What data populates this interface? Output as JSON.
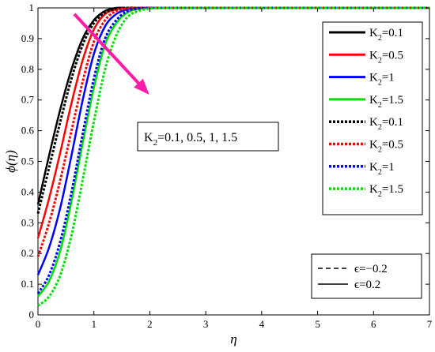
{
  "chart_data": {
    "type": "line",
    "xlabel": "η",
    "ylabel": "ϕ(η)",
    "xlim": [
      0,
      7
    ],
    "ylim": [
      0,
      1
    ],
    "xticks": [
      "0",
      "1",
      "2",
      "3",
      "4",
      "5",
      "6",
      "7"
    ],
    "yticks": [
      "0",
      "0.1",
      "0.2",
      "0.3",
      "0.4",
      "0.5",
      "0.6",
      "0.7",
      "0.8",
      "0.9",
      "1"
    ],
    "grid": false,
    "legend_position": "top-right",
    "x": [
      0,
      0.2,
      0.4,
      0.6,
      0.8,
      1.0,
      1.2,
      1.4,
      1.6,
      1.8,
      2.0,
      2.2,
      2.4,
      2.6,
      2.8,
      3.0,
      3.5,
      4,
      5,
      6,
      7
    ],
    "series": [
      {
        "legend": "K",
        "sub": "2",
        "val": "=0.1",
        "color": "#000000",
        "dash": "solid",
        "values": [
          0.36,
          0.52,
          0.67,
          0.8,
          0.9,
          0.96,
          0.99,
          1.0,
          1.0,
          1.0,
          1.0,
          1.0,
          1.0,
          1.0,
          1.0,
          1.0,
          1.0,
          1.0,
          1.0,
          1.0,
          1.0
        ]
      },
      {
        "legend": "K",
        "sub": "2",
        "val": "=0.5",
        "color": "#ff0000",
        "dash": "solid",
        "values": [
          0.25,
          0.38,
          0.53,
          0.69,
          0.83,
          0.93,
          0.98,
          0.995,
          1.0,
          1.0,
          1.0,
          1.0,
          1.0,
          1.0,
          1.0,
          1.0,
          1.0,
          1.0,
          1.0,
          1.0,
          1.0
        ]
      },
      {
        "legend": "K",
        "sub": "2",
        "val": "=1",
        "color": "#0000ff",
        "dash": "solid",
        "values": [
          0.13,
          0.22,
          0.35,
          0.52,
          0.7,
          0.85,
          0.94,
          0.98,
          0.995,
          1.0,
          1.0,
          1.0,
          1.0,
          1.0,
          1.0,
          1.0,
          1.0,
          1.0,
          1.0,
          1.0,
          1.0
        ]
      },
      {
        "legend": "K",
        "sub": "2",
        "val": "=1.5",
        "color": "#00e000",
        "dash": "solid",
        "values": [
          0.06,
          0.11,
          0.21,
          0.37,
          0.56,
          0.74,
          0.88,
          0.95,
          0.985,
          0.997,
          1.0,
          1.0,
          1.0,
          1.0,
          1.0,
          1.0,
          1.0,
          1.0,
          1.0,
          1.0,
          1.0
        ]
      },
      {
        "legend": "K",
        "sub": "2",
        "val": "=0.1",
        "color": "#000000",
        "dash": "dotted",
        "values": [
          0.33,
          0.48,
          0.63,
          0.77,
          0.88,
          0.95,
          0.985,
          0.997,
          1.0,
          1.0,
          1.0,
          1.0,
          1.0,
          1.0,
          1.0,
          1.0,
          1.0,
          1.0,
          1.0,
          1.0,
          1.0
        ]
      },
      {
        "legend": "K",
        "sub": "2",
        "val": "=0.5",
        "color": "#ff0000",
        "dash": "dotted",
        "values": [
          0.19,
          0.3,
          0.44,
          0.6,
          0.76,
          0.89,
          0.96,
          0.99,
          0.998,
          1.0,
          1.0,
          1.0,
          1.0,
          1.0,
          1.0,
          1.0,
          1.0,
          1.0,
          1.0,
          1.0,
          1.0
        ]
      },
      {
        "legend": "K",
        "sub": "2",
        "val": "=1",
        "color": "#0000ff",
        "dash": "dotted",
        "values": [
          0.07,
          0.13,
          0.24,
          0.4,
          0.59,
          0.77,
          0.9,
          0.96,
          0.99,
          0.998,
          1.0,
          1.0,
          1.0,
          1.0,
          1.0,
          1.0,
          1.0,
          1.0,
          1.0,
          1.0,
          1.0
        ]
      },
      {
        "legend": "K",
        "sub": "2",
        "val": "=1.5",
        "color": "#00e000",
        "dash": "dotted",
        "values": [
          0.03,
          0.06,
          0.13,
          0.26,
          0.44,
          0.63,
          0.8,
          0.91,
          0.97,
          0.99,
          0.998,
          1.0,
          1.0,
          1.0,
          1.0,
          1.0,
          1.0,
          1.0,
          1.0,
          1.0,
          1.0
        ]
      }
    ],
    "annotation": {
      "text_main": "K",
      "text_sub": "2",
      "text_rest": "=0.1, 0.5, 1, 1.5",
      "arrow_color": "#ff1aa8",
      "arrow_from": [
        0.65,
        0.98
      ],
      "arrow_to": [
        1.95,
        0.725
      ]
    },
    "style_legend": [
      {
        "text": "ϵ=−0.2",
        "dash": "dashed"
      },
      {
        "text": "ϵ=0.2",
        "dash": "solid"
      }
    ]
  }
}
